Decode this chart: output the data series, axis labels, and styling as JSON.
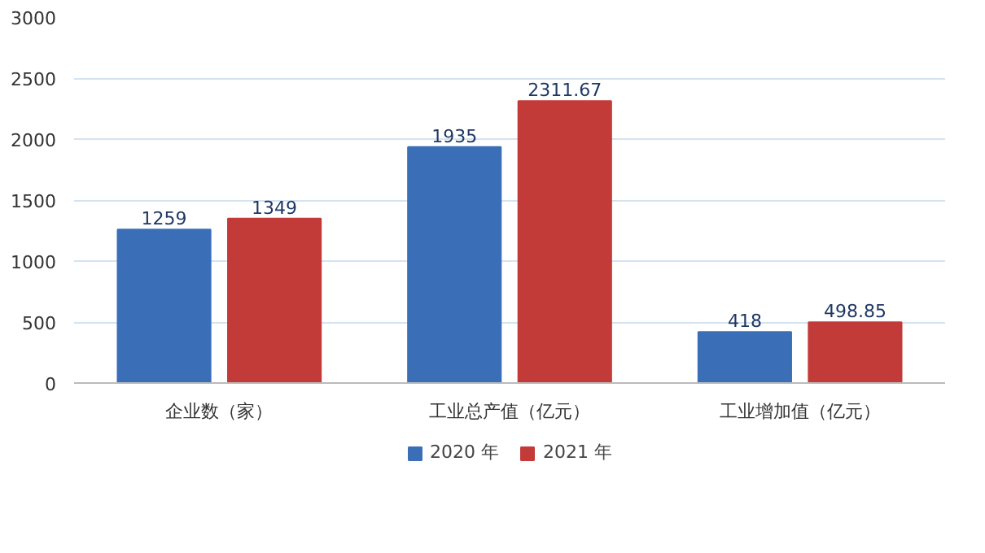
{
  "chart_data": {
    "type": "bar",
    "categories": [
      "企业数（家）",
      "工业总产值（亿元）",
      "工业增加值（亿元）"
    ],
    "series": [
      {
        "name": "2020 年",
        "color": "#3a6fb8",
        "values": [
          1259,
          1935,
          418
        ]
      },
      {
        "name": "2021 年",
        "color": "#c23b38",
        "values": [
          1349,
          2311.67,
          498.85
        ]
      }
    ],
    "ylim": [
      0,
      3000
    ],
    "yticks": [
      0,
      500,
      1000,
      1500,
      2000,
      2500,
      3000
    ],
    "grid": "y",
    "legend": "bottom",
    "data_labels": true
  }
}
